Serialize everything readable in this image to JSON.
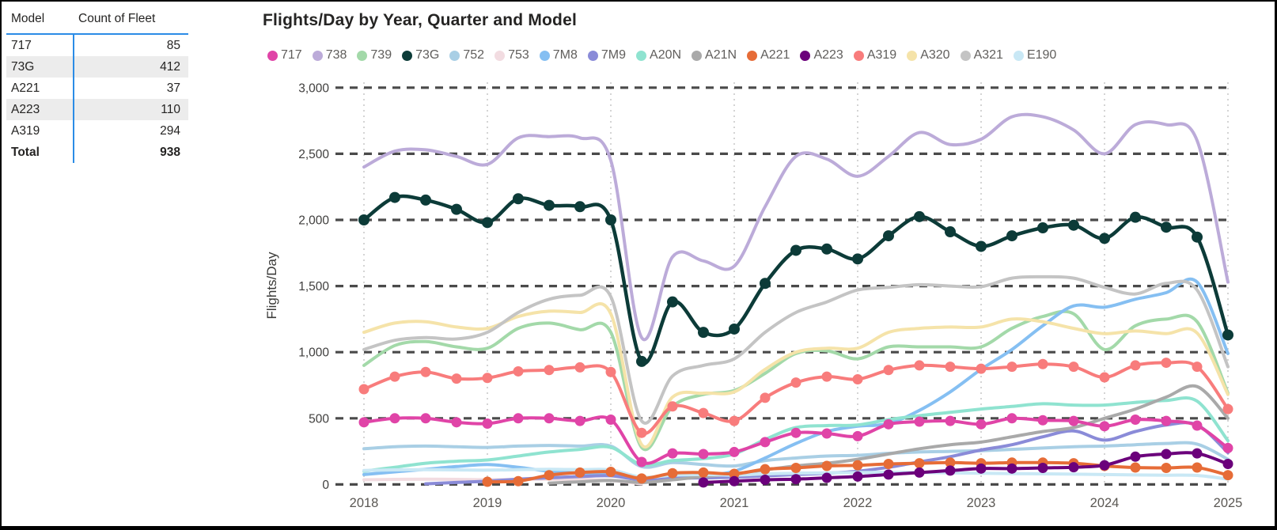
{
  "window": {
    "background": "#ffffff",
    "border_color": "#000000"
  },
  "table": {
    "name": "fleet-count-table",
    "columns": [
      "Model",
      "Count of Fleet"
    ],
    "rows": [
      {
        "model": "717",
        "count": "85"
      },
      {
        "model": "73G",
        "count": "412"
      },
      {
        "model": "A221",
        "count": "37"
      },
      {
        "model": "A223",
        "count": "110"
      },
      {
        "model": "A319",
        "count": "294"
      }
    ],
    "total_label": "Total",
    "total_value": "938",
    "accent_color": "#2B8CE6",
    "band_color": "#ECECEC"
  },
  "chart_data": {
    "type": "line",
    "title": "Flights/Day by Year, Quarter and Model",
    "xlabel": "",
    "ylabel": "Flights/Day",
    "ylim": [
      0,
      3000
    ],
    "y_ticks": [
      {
        "value": 0,
        "label": "0"
      },
      {
        "value": 500,
        "label": "500"
      },
      {
        "value": 1000,
        "label": "1,000"
      },
      {
        "value": 1500,
        "label": "1,500"
      },
      {
        "value": 2000,
        "label": "2,000"
      },
      {
        "value": 2500,
        "label": "2,500"
      },
      {
        "value": 3000,
        "label": "3,000"
      }
    ],
    "x_tick_labels": [
      "2018",
      "2019",
      "2020",
      "2021",
      "2022",
      "2023",
      "2024",
      "2025"
    ],
    "x_unit": "quarter",
    "points_per_year": 4,
    "grid": "horizontal-dashed, vertical-dotted",
    "legend_position": "top",
    "gridline_color": "#4A4A4A",
    "minor_grid_color": "#C9C9C9",
    "series": [
      {
        "name": "717",
        "color": "#E044A7",
        "markers": true,
        "values": [
          470,
          500,
          500,
          470,
          460,
          500,
          500,
          480,
          490,
          170,
          235,
          230,
          245,
          320,
          390,
          385,
          365,
          455,
          475,
          480,
          455,
          500,
          485,
          480,
          440,
          490,
          480,
          445,
          275
        ]
      },
      {
        "name": "738",
        "color": "#BCABD9",
        "markers": false,
        "values": [
          2400,
          2520,
          2530,
          2480,
          2420,
          2620,
          2630,
          2620,
          2450,
          1110,
          1720,
          1690,
          1650,
          2100,
          2480,
          2460,
          2330,
          2480,
          2660,
          2570,
          2610,
          2780,
          2780,
          2680,
          2500,
          2720,
          2720,
          2600,
          1530
        ]
      },
      {
        "name": "739",
        "color": "#A3D9A9",
        "markers": false,
        "values": [
          900,
          1050,
          1080,
          1040,
          1030,
          1180,
          1220,
          1170,
          1150,
          280,
          590,
          680,
          710,
          840,
          990,
          1010,
          950,
          1040,
          1040,
          1040,
          1040,
          1180,
          1270,
          1290,
          1020,
          1200,
          1250,
          1230,
          690
        ]
      },
      {
        "name": "73G",
        "color": "#0C3B38",
        "markers": true,
        "values": [
          2000,
          2170,
          2150,
          2080,
          1980,
          2160,
          2110,
          2100,
          2000,
          930,
          1380,
          1150,
          1175,
          1520,
          1770,
          1780,
          1705,
          1880,
          2025,
          1910,
          1800,
          1880,
          1940,
          1960,
          1860,
          2020,
          1945,
          1870,
          1130
        ]
      },
      {
        "name": "752",
        "color": "#A9CFE5",
        "markers": false,
        "values": [
          270,
          285,
          290,
          285,
          280,
          290,
          295,
          290,
          290,
          135,
          165,
          150,
          140,
          180,
          200,
          215,
          220,
          235,
          245,
          250,
          255,
          265,
          275,
          285,
          290,
          300,
          310,
          305,
          190
        ]
      },
      {
        "name": "753",
        "color": "#F2DCE1",
        "markers": false,
        "values": [
          35,
          38,
          40,
          38,
          36,
          38,
          40,
          38,
          30,
          5,
          null,
          null,
          null,
          null,
          null,
          null,
          null,
          null,
          null,
          null,
          null,
          null,
          null,
          null,
          null,
          null,
          null,
          null,
          null
        ]
      },
      {
        "name": "7M8",
        "color": "#85BFF2",
        "markers": false,
        "values": [
          75,
          95,
          115,
          135,
          150,
          130,
          100,
          85,
          80,
          40,
          55,
          65,
          100,
          200,
          310,
          400,
          440,
          460,
          560,
          700,
          870,
          1020,
          1200,
          1350,
          1340,
          1400,
          1450,
          1530,
          990
        ]
      },
      {
        "name": "7M9",
        "color": "#8A8BD8",
        "markers": false,
        "values": [
          null,
          null,
          5,
          15,
          25,
          40,
          50,
          60,
          65,
          35,
          45,
          50,
          55,
          65,
          75,
          85,
          100,
          130,
          170,
          210,
          260,
          300,
          360,
          405,
          335,
          400,
          450,
          450,
          240
        ]
      },
      {
        "name": "A20N",
        "color": "#8FE3D0",
        "markers": false,
        "values": [
          100,
          130,
          160,
          175,
          185,
          215,
          245,
          265,
          280,
          150,
          180,
          195,
          230,
          340,
          430,
          445,
          450,
          490,
          520,
          545,
          570,
          590,
          610,
          600,
          600,
          620,
          635,
          630,
          330
        ]
      },
      {
        "name": "A21N",
        "color": "#A9A9A9",
        "markers": false,
        "values": [
          null,
          null,
          null,
          null,
          null,
          null,
          10,
          20,
          30,
          15,
          35,
          60,
          80,
          110,
          140,
          160,
          190,
          230,
          270,
          300,
          320,
          360,
          400,
          430,
          500,
          570,
          660,
          740,
          500
        ]
      },
      {
        "name": "A221",
        "color": "#E66C37",
        "markers": true,
        "values": [
          null,
          null,
          null,
          null,
          20,
          25,
          70,
          90,
          95,
          45,
          85,
          90,
          80,
          115,
          125,
          140,
          145,
          155,
          160,
          165,
          160,
          165,
          165,
          160,
          140,
          128,
          125,
          128,
          70
        ]
      },
      {
        "name": "A223",
        "color": "#6B007B",
        "markers": true,
        "values": [
          null,
          null,
          null,
          null,
          null,
          null,
          null,
          null,
          null,
          null,
          null,
          15,
          25,
          35,
          40,
          50,
          60,
          75,
          90,
          105,
          120,
          120,
          125,
          130,
          145,
          210,
          230,
          235,
          155
        ]
      },
      {
        "name": "A319",
        "color": "#F87C7C",
        "markers": true,
        "values": [
          720,
          815,
          850,
          800,
          805,
          855,
          865,
          885,
          850,
          390,
          590,
          540,
          480,
          655,
          770,
          815,
          795,
          865,
          900,
          890,
          875,
          890,
          910,
          890,
          810,
          900,
          920,
          890,
          570
        ]
      },
      {
        "name": "A320",
        "color": "#F5E3A9",
        "markers": false,
        "values": [
          1150,
          1220,
          1230,
          1190,
          1180,
          1270,
          1310,
          1300,
          1290,
          300,
          660,
          690,
          700,
          870,
          1000,
          1030,
          1030,
          1150,
          1180,
          1190,
          1190,
          1250,
          1230,
          1180,
          1140,
          1160,
          1140,
          1145,
          680
        ]
      },
      {
        "name": "A321",
        "color": "#C4C4C4",
        "markers": false,
        "values": [
          1020,
          1090,
          1110,
          1100,
          1150,
          1300,
          1400,
          1430,
          1420,
          480,
          820,
          900,
          950,
          1150,
          1300,
          1380,
          1470,
          1490,
          1510,
          1500,
          1495,
          1560,
          1570,
          1560,
          1490,
          1440,
          1520,
          1470,
          890
        ]
      },
      {
        "name": "E190",
        "color": "#C9E8F5",
        "markers": false,
        "values": [
          105,
          110,
          112,
          110,
          108,
          112,
          115,
          112,
          110,
          55,
          70,
          75,
          70,
          80,
          85,
          88,
          90,
          92,
          90,
          88,
          85,
          82,
          80,
          78,
          75,
          72,
          70,
          68,
          40
        ]
      }
    ]
  }
}
